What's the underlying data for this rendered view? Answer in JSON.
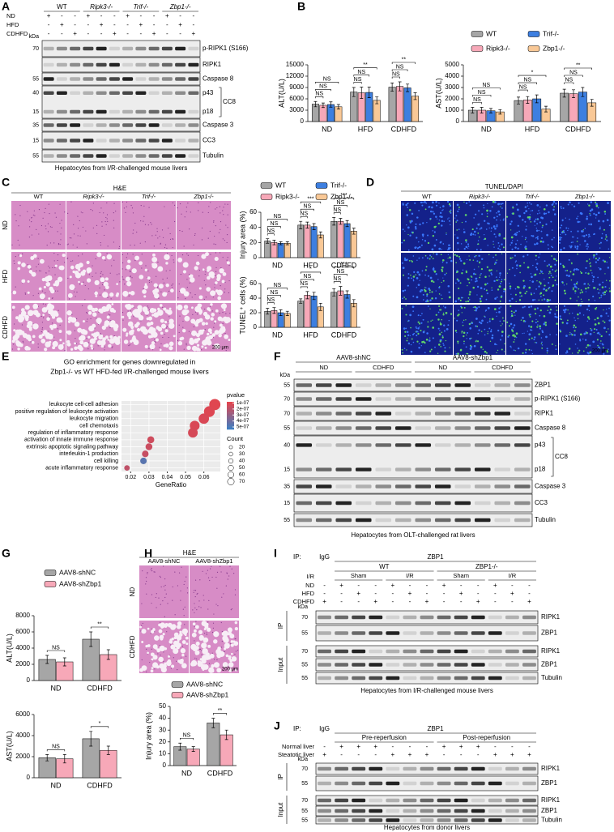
{
  "figure": {
    "panel_letters": [
      "A",
      "B",
      "C",
      "D",
      "E",
      "F",
      "G",
      "H",
      "I",
      "J"
    ],
    "a": {
      "groups": [
        "WT",
        "Ripk3-/-",
        "Trif-/-",
        "Zbp1-/-"
      ],
      "conditions": [
        {
          "name": "ND",
          "signs": [
            "+",
            "-",
            "-",
            "+",
            "-",
            "-",
            "+",
            "-",
            "-",
            "+",
            "-",
            "-"
          ]
        },
        {
          "name": "HFD",
          "signs": [
            "-",
            "+",
            "-",
            "-",
            "+",
            "-",
            "-",
            "+",
            "-",
            "-",
            "+",
            "-"
          ]
        },
        {
          "name": "CDHFD",
          "signs": [
            "-",
            "-",
            "+",
            "-",
            "-",
            "+",
            "-",
            "-",
            "+",
            "-",
            "-",
            "+"
          ]
        }
      ],
      "kda": "kDa",
      "rows": [
        {
          "labels": [
            "p-RIPK1 (S166)"
          ],
          "mw": [
            "70"
          ]
        },
        {
          "labels": [
            "RIPK1"
          ],
          "mw": []
        },
        {
          "labels": [
            "Caspase 8"
          ],
          "mw": [
            "55"
          ]
        },
        {
          "labels": [
            "p43",
            "p18"
          ],
          "group": "CC8",
          "mw": [
            "40",
            "15"
          ]
        },
        {
          "labels": [
            "Caspase 3"
          ],
          "mw": [
            "35"
          ]
        },
        {
          "labels": [
            "CC3"
          ],
          "mw": [
            "15"
          ]
        },
        {
          "labels": [
            "Tubulin"
          ],
          "mw": [
            "55"
          ]
        }
      ],
      "caption": "Hepatocytes from I/R-challenged mouse livers"
    },
    "c": {
      "title": "H&E",
      "columns": [
        "WT",
        "Ripk3-/-",
        "Trif-/-",
        "Zbp1-/-"
      ],
      "rows": [
        "ND",
        "HFD",
        "CDHFD"
      ],
      "scale": "200 μm"
    },
    "d": {
      "title_parts": [
        "TUNEL",
        "/DAPI"
      ],
      "columns": [
        "WT",
        "Ripk3-/-",
        "Trif-/-",
        "Zbp1-/-"
      ],
      "scale": "200 μm"
    },
    "f": {
      "groups": [
        {
          "name": "AAV8-shNC",
          "subs": [
            "ND",
            "CDHFD"
          ]
        },
        {
          "name": "AAV8-shZbp1",
          "subs": [
            "ND",
            "CDHFD"
          ]
        }
      ],
      "kda": "kDa",
      "rows": [
        {
          "labels": [
            "ZBP1"
          ],
          "mw": [
            "55"
          ]
        },
        {
          "labels": [
            "p-RIPK1 (S166)"
          ],
          "mw": [
            "70"
          ]
        },
        {
          "labels": [
            "RIPK1"
          ],
          "mw": [
            "70"
          ]
        },
        {
          "labels": [
            "Caspase 8"
          ],
          "mw": [
            "55"
          ]
        },
        {
          "labels": [
            "p43",
            "p18"
          ],
          "group": "CC8",
          "mw": [
            "40",
            "15"
          ]
        },
        {
          "labels": [
            "Caspase 3"
          ],
          "mw": [
            "35"
          ]
        },
        {
          "labels": [
            "CC3"
          ],
          "mw": [
            "15"
          ]
        },
        {
          "labels": [
            "Tubulin"
          ],
          "mw": [
            "55"
          ]
        }
      ],
      "caption": "Hepatocytes from OLT-challenged rat livers"
    },
    "h": {
      "title": "H&E",
      "columns": [
        "AAV8-shNC",
        "AAV8-shZbp1"
      ],
      "rows": [
        "ND",
        "CDHFD"
      ],
      "scale": "200 μm"
    },
    "i": {
      "ip_label": "IP:",
      "ip_groups": [
        "IgG",
        "ZBP1"
      ],
      "genotypes": [
        "WT",
        "ZBP1-/-"
      ],
      "ir_label": "I/R",
      "ir_groups": [
        "Sham",
        "I/R",
        "Sham",
        "I/R"
      ],
      "conditions": [
        {
          "name": "ND",
          "signs": [
            "-",
            "+",
            "-",
            "-",
            "+",
            "-",
            "-",
            "+",
            "-",
            "-",
            "+",
            "-",
            "-"
          ]
        },
        {
          "name": "HFD",
          "signs": [
            "-",
            "-",
            "+",
            "-",
            "-",
            "+",
            "-",
            "-",
            "+",
            "-",
            "-",
            "+",
            "-"
          ]
        },
        {
          "name": "CDHFD",
          "signs": [
            "+",
            "-",
            "-",
            "+",
            "-",
            "-",
            "+",
            "-",
            "-",
            "+",
            "-",
            "-",
            "+"
          ]
        }
      ],
      "kda": "kDa",
      "sections": [
        {
          "name": "IP",
          "rows": [
            {
              "labels": [
                "RIPK1"
              ],
              "mw": [
                "70"
              ]
            },
            {
              "labels": [
                "ZBP1"
              ],
              "mw": [
                "55"
              ]
            }
          ]
        },
        {
          "name": "Input",
          "rows": [
            {
              "labels": [
                "RIPK1"
              ],
              "mw": [
                "70"
              ]
            },
            {
              "labels": [
                "ZBP1"
              ],
              "mw": [
                "55"
              ]
            },
            {
              "labels": [
                "Tubulin"
              ],
              "mw": [
                "55"
              ]
            }
          ]
        }
      ],
      "caption": "Hepatocytes from I/R-challenged mouse livers"
    },
    "j": {
      "ip_label": "IP:",
      "ip_groups": [
        "IgG",
        "ZBP1"
      ],
      "phases": [
        "Pre-reperfusion",
        "Post-reperfusion"
      ],
      "conditions": [
        {
          "name": "Normal liver",
          "signs": [
            "-",
            "+",
            "+",
            "+",
            "-",
            "-",
            "-",
            "+",
            "+",
            "+",
            "-",
            "-",
            "-"
          ]
        },
        {
          "name": "Steatotic liver",
          "signs": [
            "+",
            "-",
            "-",
            "-",
            "+",
            "+",
            "+",
            "-",
            "-",
            "-",
            "+",
            "+",
            "+"
          ]
        }
      ],
      "kda": "kDa",
      "sections": [
        {
          "name": "IP",
          "rows": [
            {
              "labels": [
                "RIPK1"
              ],
              "mw": [
                "70"
              ]
            },
            {
              "labels": [
                "ZBP1"
              ],
              "mw": [
                "55"
              ]
            }
          ]
        },
        {
          "name": "Input",
          "rows": [
            {
              "labels": [
                "RIPK1"
              ],
              "mw": [
                "70"
              ]
            },
            {
              "labels": [
                "ZBP1"
              ],
              "mw": [
                "55"
              ]
            },
            {
              "labels": [
                "Tubulin"
              ],
              "mw": [
                "55"
              ]
            }
          ]
        }
      ],
      "caption": "Hepatocytes from donor livers"
    }
  },
  "chart_data": [
    {
      "type": "bar",
      "ylabel": "ALT(U/L)",
      "categories": [
        "ND",
        "HFD",
        "CDHFD"
      ],
      "ylim": [
        0,
        15000
      ],
      "yticks": [
        0,
        3000,
        6000,
        9000,
        12000,
        15000
      ],
      "series": [
        {
          "name": "WT",
          "color": "#a6a6a6",
          "values": [
            4600,
            7800,
            9100
          ],
          "errors": [
            700,
            1200,
            1100
          ]
        },
        {
          "name": "Ripk3-/-",
          "color": "#f7a8b8",
          "values": [
            4300,
            7600,
            9300
          ],
          "errors": [
            600,
            1500,
            1200
          ]
        },
        {
          "name": "Trif-/-",
          "color": "#3d7fe0",
          "values": [
            4500,
            7700,
            8900
          ],
          "errors": [
            700,
            1400,
            1000
          ]
        },
        {
          "name": "Zbp1-/-",
          "color": "#f9c896",
          "values": [
            3900,
            5600,
            6700
          ],
          "errors": [
            600,
            900,
            900
          ]
        }
      ],
      "significance": [
        [
          "NS",
          "NS",
          "NS"
        ],
        [
          "**",
          "NS",
          "NS"
        ],
        [
          "**",
          "NS",
          "NS"
        ]
      ]
    },
    {
      "type": "bar",
      "ylabel": "AST(U/L)",
      "categories": [
        "ND",
        "HFD",
        "CDHFD"
      ],
      "ylim": [
        0,
        5000
      ],
      "yticks": [
        0,
        1000,
        2000,
        3000,
        4000,
        5000
      ],
      "series": [
        {
          "color": "#a6a6a6",
          "values": [
            1000,
            1850,
            2500
          ],
          "errors": [
            250,
            300,
            350
          ]
        },
        {
          "color": "#f7a8b8",
          "values": [
            1000,
            1900,
            2450
          ],
          "errors": [
            250,
            300,
            350
          ]
        },
        {
          "color": "#3d7fe0",
          "values": [
            950,
            2000,
            2600
          ],
          "errors": [
            200,
            350,
            400
          ]
        },
        {
          "color": "#f9c896",
          "values": [
            850,
            1100,
            1650
          ],
          "errors": [
            200,
            250,
            300
          ]
        }
      ],
      "significance": [
        [
          "NS",
          "NS",
          "NS"
        ],
        [
          "*",
          "NS",
          "NS"
        ],
        [
          "**",
          "NS",
          "NS"
        ]
      ]
    },
    {
      "type": "bar",
      "ylabel": "Injury area (%)",
      "categories": [
        "ND",
        "HFD",
        "CDHFD"
      ],
      "ylim": [
        0,
        60
      ],
      "yticks": [
        0,
        20,
        40,
        60
      ],
      "series": [
        {
          "name": "WT",
          "color": "#a6a6a6",
          "values": [
            22,
            43,
            48
          ],
          "errors": [
            3,
            5,
            5
          ]
        },
        {
          "name": "Ripk3-/-",
          "color": "#f7a8b8",
          "values": [
            20,
            43,
            48
          ],
          "errors": [
            3,
            4,
            4
          ]
        },
        {
          "name": "Trif-/-",
          "color": "#3d7fe0",
          "values": [
            19,
            41,
            45
          ],
          "errors": [
            2,
            4,
            4
          ]
        },
        {
          "name": "Zbp1-/-",
          "color": "#f9c896",
          "values": [
            19,
            30,
            35
          ],
          "errors": [
            2,
            4,
            4
          ]
        }
      ],
      "significance": [
        [
          "NS",
          "NS",
          "NS"
        ],
        [
          "***",
          "NS",
          "NS"
        ],
        [
          "***",
          "NS",
          "NS"
        ]
      ]
    },
    {
      "type": "bar",
      "ylabel": "TUNEL⁺ cells (%)",
      "categories": [
        "ND",
        "HFD",
        "CDHFD"
      ],
      "ylim": [
        0,
        60
      ],
      "yticks": [
        0,
        20,
        40,
        60
      ],
      "series": [
        {
          "color": "#a6a6a6",
          "values": [
            22,
            36,
            48
          ],
          "errors": [
            4,
            3,
            5
          ]
        },
        {
          "color": "#f7a8b8",
          "values": [
            23,
            44,
            50
          ],
          "errors": [
            4,
            5,
            6
          ]
        },
        {
          "color": "#3d7fe0",
          "values": [
            20,
            43,
            45
          ],
          "errors": [
            4,
            5,
            5
          ]
        },
        {
          "color": "#f9c896",
          "values": [
            19,
            28,
            33
          ],
          "errors": [
            3,
            5,
            5
          ]
        }
      ],
      "significance": [
        [
          "NS",
          "NS",
          "NS"
        ],
        [
          "*",
          "NS",
          "NS"
        ],
        [
          "***",
          "NS",
          "NS"
        ]
      ]
    },
    {
      "type": "dot",
      "title": [
        "GO enrichment for genes downregulated in",
        "Zbp1-/- vs WT HFD-fed I/R-challenged mouse livers"
      ],
      "categories": [
        "leukocyte cell-cell adhesion",
        "positive regulation of leukocyte activation",
        "leukocyte migration",
        "cell chemotaxis",
        "regulation of inflammatory response",
        "activation of innate immune response",
        "extrinsic apoptotic signaling pathway",
        "interleukin-1 production",
        "cell killing",
        "acute inflammatory response"
      ],
      "x": [
        0.066,
        0.063,
        0.06,
        0.055,
        0.054,
        0.031,
        0.03,
        0.028,
        0.027,
        0.018
      ],
      "sizes": [
        70,
        67,
        63,
        58,
        57,
        33,
        32,
        30,
        29,
        20
      ],
      "pvalues": [
        1e-07,
        1.1e-07,
        1.2e-07,
        1.2e-07,
        1.3e-07,
        1.5e-07,
        1.6e-07,
        1.7e-07,
        4.6e-07,
        1.9e-07
      ],
      "xlim": [
        0.015,
        0.069
      ],
      "xticks": [
        0.02,
        0.03,
        0.04,
        0.05,
        0.06
      ],
      "xlabel": "GeneRatio",
      "grid": true,
      "color_title": "pvalue",
      "color_lim": [
        8e-08,
        5.4e-07
      ],
      "color_low": "#e8434b",
      "color_high": "#3b7fc4",
      "color_ticks": [
        {
          "value": 1e-07,
          "label": "1e-07"
        },
        {
          "value": 2e-07,
          "label": "2e-07"
        },
        {
          "value": 3e-07,
          "label": "3e-07"
        },
        {
          "value": 4e-07,
          "label": "4e-07"
        },
        {
          "value": 5e-07,
          "label": "5e-07"
        }
      ],
      "size_title": "Count",
      "size_ticks": [
        20,
        30,
        40,
        50,
        60,
        70
      ]
    },
    {
      "type": "bar",
      "ylabel": "ALT(U/L)",
      "categories": [
        "ND",
        "CDHFD"
      ],
      "ylim": [
        0,
        8000
      ],
      "yticks": [
        0,
        2000,
        4000,
        6000,
        8000
      ],
      "series": [
        {
          "name": "AAV8-shNC",
          "color": "#a6a6a6",
          "values": [
            2600,
            5100
          ],
          "errors": [
            500,
            900
          ]
        },
        {
          "name": "AAV8-shZbp1",
          "color": "#f7a8b8",
          "values": [
            2300,
            3200
          ],
          "errors": [
            500,
            600
          ]
        }
      ],
      "significance": [
        [
          "NS"
        ],
        [
          "**"
        ]
      ]
    },
    {
      "type": "bar",
      "ylabel": "AST(U/L)",
      "categories": [
        "ND",
        "CDHFD"
      ],
      "ylim": [
        0,
        6000
      ],
      "yticks": [
        0,
        2000,
        4000,
        6000
      ],
      "series": [
        {
          "color": "#a6a6a6",
          "values": [
            1900,
            3700
          ],
          "errors": [
            300,
            700
          ]
        },
        {
          "color": "#f7a8b8",
          "values": [
            1800,
            2600
          ],
          "errors": [
            400,
            400
          ]
        }
      ],
      "significance": [
        [
          "NS"
        ],
        [
          "*"
        ]
      ]
    },
    {
      "type": "bar",
      "ylabel": "Injury area (%)",
      "categories": [
        "ND",
        "CDHFD"
      ],
      "ylim": [
        0,
        50
      ],
      "yticks": [
        0,
        10,
        20,
        30,
        40,
        50
      ],
      "series": [
        {
          "name": "AAV8-shNC",
          "color": "#a6a6a6",
          "values": [
            16,
            36
          ],
          "errors": [
            3,
            4
          ]
        },
        {
          "name": "AAV8-shZbp1",
          "color": "#f7a8b8",
          "values": [
            14,
            26
          ],
          "errors": [
            2,
            4
          ]
        }
      ],
      "significance": [
        [
          "NS"
        ],
        [
          "**"
        ]
      ]
    }
  ]
}
